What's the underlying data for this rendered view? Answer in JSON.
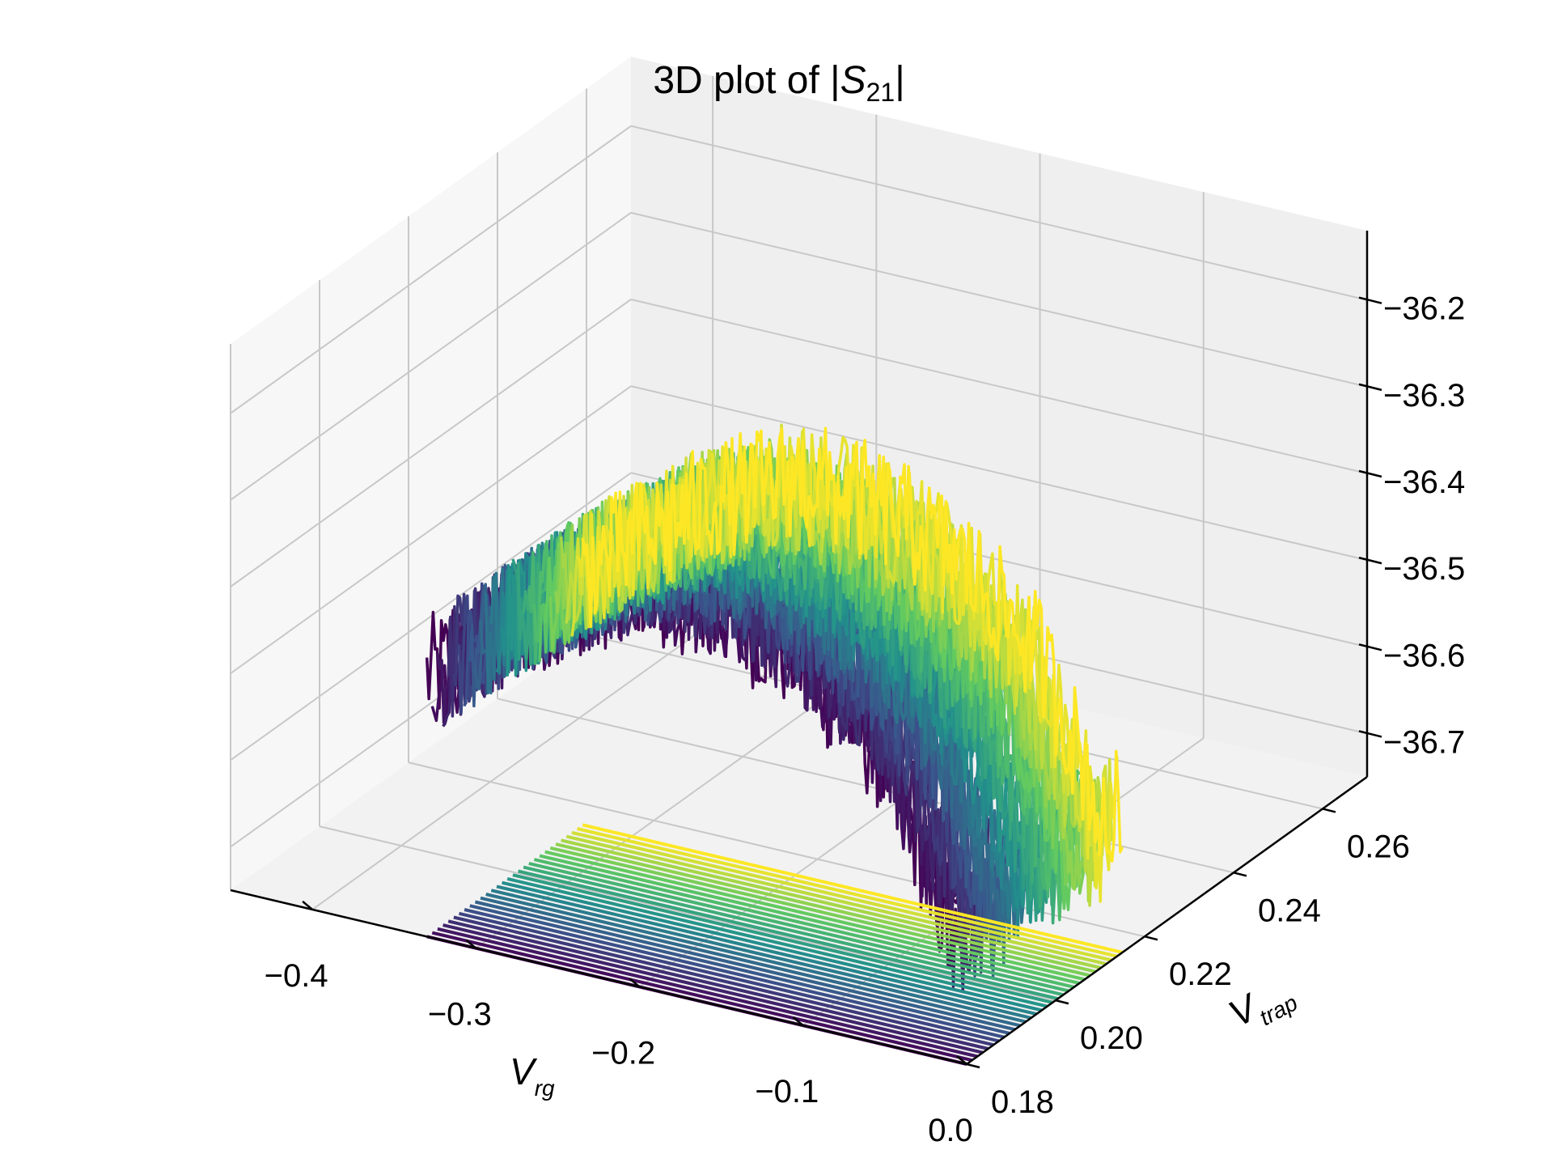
{
  "chart_data": {
    "type": "line",
    "projection": "3d",
    "title": "3D plot of |S21|",
    "title_parts": {
      "text": "3D plot of |",
      "symbol": "S",
      "subscript": "21",
      "close": "|"
    },
    "xlabel": {
      "symbol": "V",
      "subscript": "rg"
    },
    "ylabel": {
      "symbol": "V",
      "subscript": "trap"
    },
    "zlabel": "",
    "xlim": [
      -0.45,
      0.0
    ],
    "ylim": [
      0.18,
      0.27
    ],
    "zlim": [
      -36.75,
      -36.12
    ],
    "x_ticks": [
      "−0.4",
      "−0.3",
      "−0.2",
      "−0.1",
      "0.0"
    ],
    "x_tick_values": [
      -0.4,
      -0.3,
      -0.2,
      -0.1,
      0.0
    ],
    "y_ticks": [
      "0.18",
      "0.20",
      "0.22",
      "0.24",
      "0.26"
    ],
    "y_tick_values": [
      0.18,
      0.2,
      0.22,
      0.24,
      0.26
    ],
    "z_ticks": [
      "−36.2",
      "−36.3",
      "−36.4",
      "−36.5",
      "−36.6",
      "−36.7"
    ],
    "z_tick_values": [
      -36.2,
      -36.3,
      -36.4,
      -36.5,
      -36.6,
      -36.7
    ],
    "colormap": "viridis",
    "colors": {
      "viridis": [
        "#440154",
        "#3b528b",
        "#21918c",
        "#5ec962",
        "#fde725"
      ]
    },
    "grid": true,
    "series_count": 30,
    "series_description": "Each trace: |S21| versus V_rg at fixed V_trap; baseline trace drawn at z = -36.75",
    "trace_x_range": [
      -0.33,
      0.0
    ],
    "trace_y_range": [
      0.18,
      0.215
    ],
    "profile": {
      "x": [
        -0.33,
        -0.3,
        -0.25,
        -0.2,
        -0.15,
        -0.1,
        -0.05,
        -0.02,
        -0.01,
        0.0
      ],
      "z": [
        -36.45,
        -36.4,
        -36.33,
        -36.28,
        -36.29,
        -36.33,
        -36.42,
        -36.55,
        -36.62,
        -36.55
      ]
    }
  }
}
